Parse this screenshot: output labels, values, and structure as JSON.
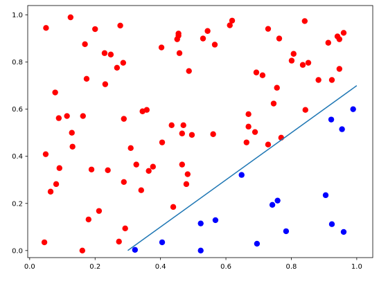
{
  "chart_data": {
    "type": "scatter",
    "xlim": [
      -0.006,
      1.049
    ],
    "ylim": [
      -0.03,
      1.04
    ],
    "xticks": [
      {
        "value": 0,
        "label": "0.0"
      },
      {
        "value": 0.2,
        "label": "0.2"
      },
      {
        "value": 0.4,
        "label": "0.4"
      },
      {
        "value": 0.6,
        "label": "0.6"
      },
      {
        "value": 0.8,
        "label": "0.8"
      },
      {
        "value": 1,
        "label": "1.0"
      }
    ],
    "yticks": [
      {
        "value": 0,
        "label": "0.0"
      },
      {
        "value": 0.2,
        "label": "0.2"
      },
      {
        "value": 0.4,
        "label": "0.4"
      },
      {
        "value": 0.6,
        "label": "0.6"
      },
      {
        "value": 0.8,
        "label": "0.8"
      },
      {
        "value": 1,
        "label": "1.0"
      }
    ],
    "grid": false,
    "series": [
      {
        "color": "#ff0000",
        "style": "points",
        "x": [
          0.05,
          0.125,
          0.2,
          0.277,
          0.169,
          0.229,
          0.248,
          0.267,
          0.286,
          0.231,
          0.174,
          0.078,
          0.089,
          0.114,
          0.129,
          0.131,
          0.163,
          0.049,
          0.091,
          0.064,
          0.081,
          0.045,
          0.189,
          0.18,
          0.212,
          0.239,
          0.288,
          0.288,
          0.292,
          0.273,
          0.161,
          0.309,
          0.326,
          0.341,
          0.345,
          0.358,
          0.364,
          0.377,
          0.403,
          0.405,
          0.434,
          0.439,
          0.451,
          0.455,
          0.458,
          0.455,
          0.466,
          0.47,
          0.466,
          0.479,
          0.483,
          0.487,
          0.496,
          0.53,
          0.544,
          0.566,
          0.561,
          0.612,
          0.619,
          0.663,
          0.669,
          0.669,
          0.689,
          0.693,
          0.712,
          0.729,
          0.729,
          0.746,
          0.756,
          0.763,
          0.769,
          0.801,
          0.807,
          0.835,
          0.852,
          0.841,
          0.843,
          0.883,
          0.913,
          0.924,
          0.941,
          0.947,
          0.947,
          0.96
        ],
        "values": [
          0.945,
          0.99,
          0.94,
          0.955,
          0.876,
          0.838,
          0.832,
          0.776,
          0.797,
          0.706,
          0.729,
          0.671,
          0.562,
          0.571,
          0.5,
          0.441,
          0.571,
          0.409,
          0.35,
          0.25,
          0.282,
          0.035,
          0.344,
          0.132,
          0.168,
          0.341,
          0.559,
          0.291,
          0.094,
          0.038,
          0.0,
          0.435,
          0.365,
          0.256,
          0.591,
          0.597,
          0.338,
          0.356,
          0.862,
          0.459,
          0.532,
          0.185,
          0.897,
          0.921,
          0.838,
          0.912,
          0.497,
          0.532,
          0.365,
          0.282,
          0.324,
          0.762,
          0.491,
          0.9,
          0.932,
          0.874,
          0.494,
          0.956,
          0.976,
          0.459,
          0.579,
          0.526,
          0.503,
          0.756,
          0.744,
          0.941,
          0.45,
          0.624,
          0.691,
          0.9,
          0.479,
          0.806,
          0.835,
          0.788,
          0.797,
          0.974,
          0.597,
          0.724,
          0.882,
          0.724,
          0.909,
          0.897,
          0.771,
          0.924
        ]
      },
      {
        "color": "#0000ff",
        "style": "points",
        "x": [
          0.322,
          0.405,
          0.523,
          0.568,
          0.523,
          0.648,
          0.695,
          0.742,
          0.758,
          0.784,
          0.905,
          0.922,
          0.924,
          0.955,
          0.96,
          0.989
        ],
        "values": [
          0.003,
          0.035,
          0.115,
          0.129,
          0.0,
          0.321,
          0.029,
          0.194,
          0.212,
          0.082,
          0.235,
          0.556,
          0.112,
          0.515,
          0.079,
          0.6
        ]
      },
      {
        "color": "#1f77b4",
        "style": "line",
        "x": [
          0.3,
          1.0
        ],
        "values": [
          0,
          0.7
        ]
      }
    ]
  }
}
